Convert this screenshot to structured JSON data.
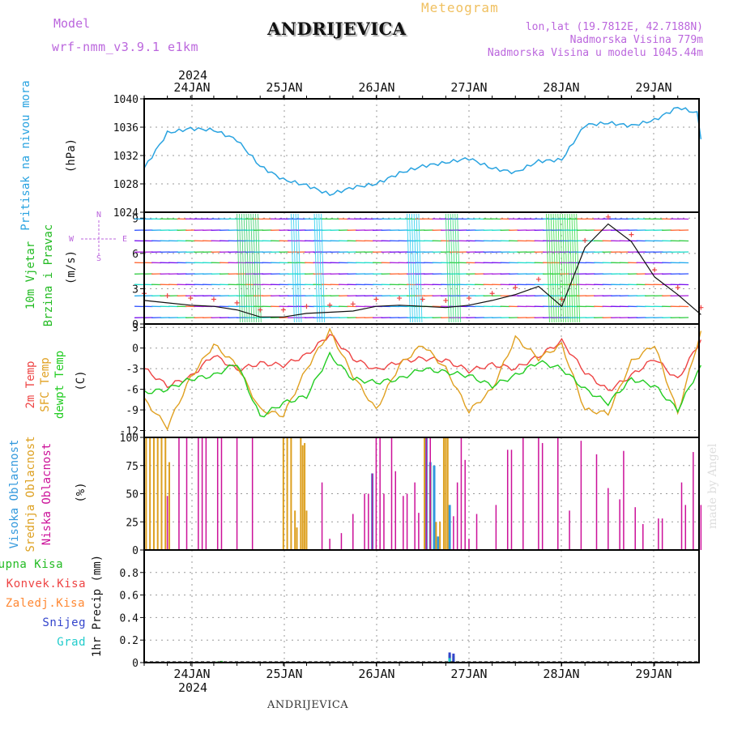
{
  "header": {
    "model_label": "Model",
    "model_name": "wrf-nmm_v3.9.1 e1km",
    "station_title": "ANDRIJEVICA",
    "meteogram_label": "Meteogram",
    "lonlat": "lon,lat (19.7812E, 42.7188N)",
    "altitude": "Nadmorska Visina 779m",
    "model_altitude": "Nadmorska Visina u modelu 1045.44m"
  },
  "footer": {
    "station": "ANDRIJEVICA",
    "credit": "made by Angel"
  },
  "colors": {
    "pressure": "#29a3e0",
    "temp2m": "#ee4444",
    "sfc": "#e0a020",
    "dewpt": "#22cc22",
    "high_cloud": "#3399dd",
    "mid_cloud": "#dda020",
    "low_cloud": "#cc1199",
    "precip_total": "#22bb22",
    "precip_conv": "#ee4444",
    "precip_frozen": "#ff8833",
    "snow": "#3344cc",
    "hail": "#22cccc",
    "header_purple": "#bb66dd",
    "meteogram_orange": "#f0c060"
  },
  "chart_data": [
    {
      "type": "line",
      "panel": "pressure",
      "ylabel_main": "Pritisak na nivou mora",
      "ylabel_unit": "(hPa)",
      "ylim": [
        1024,
        1040
      ],
      "yticks": [
        "1040",
        "1036",
        "1032",
        "1028",
        "1024"
      ],
      "x_top_year": "2024",
      "x_top_labels": [
        "24JAN",
        "25JAN",
        "26JAN",
        "27JAN",
        "28JAN",
        "29JAN"
      ],
      "x_hours": [
        0,
        6,
        12,
        18,
        24,
        30,
        36,
        42,
        48,
        54,
        60,
        66,
        72,
        78,
        84,
        90,
        96,
        102,
        108,
        114,
        120,
        126,
        132,
        138,
        144
      ],
      "series": [
        {
          "values": [
            1030.2,
            1035.2,
            1035.8,
            1035.6,
            1034.2,
            1030.5,
            1028.6,
            1027.8,
            1026.5,
            1027.5,
            1028.0,
            1029.5,
            1030.5,
            1031.0,
            1031.6,
            1030.2,
            1029.6,
            1031.2,
            1031.4,
            1036.3,
            1036.6,
            1036.2,
            1037.0,
            1038.8,
            1037.8
          ]
        }
      ]
    },
    {
      "type": "scatter",
      "panel": "wind",
      "ylabel_main": "10m Vjetar",
      "ylabel_sub": "Brzina i Pravac",
      "ylabel_unit": "(m/s)",
      "compass": [
        "N",
        "S",
        "W",
        "E"
      ],
      "ylim": [
        0,
        9.5
      ],
      "yticks": [
        "9",
        "6",
        "3",
        "0"
      ],
      "x_hours": [
        0,
        6,
        12,
        18,
        24,
        30,
        36,
        42,
        48,
        54,
        60,
        66,
        72,
        78,
        84,
        90,
        96,
        102,
        108,
        114,
        120,
        126,
        132,
        138,
        144
      ],
      "series": [
        {
          "values": [
            2.0,
            1.8,
            1.6,
            1.5,
            1.2,
            0.6,
            0.6,
            0.9,
            1.0,
            1.1,
            1.5,
            1.6,
            1.5,
            1.4,
            1.6,
            2.0,
            2.5,
            3.2,
            1.5,
            6.5,
            8.5,
            7.0,
            4.0,
            2.5,
            0.8
          ]
        }
      ]
    },
    {
      "type": "line",
      "panel": "temperature",
      "ylabel_lines": [
        "2m Temp",
        "SFC Temp",
        "dewpt Temp"
      ],
      "ylabel_unit": "(C)",
      "ylim": [
        -13,
        3.5
      ],
      "yticks": [
        "3",
        "0",
        "-3",
        "-6",
        "-9",
        "-12"
      ],
      "x_hours": [
        0,
        6,
        12,
        18,
        24,
        30,
        36,
        42,
        48,
        54,
        60,
        66,
        72,
        78,
        84,
        90,
        96,
        102,
        108,
        114,
        120,
        126,
        132,
        138,
        144
      ],
      "series": [
        {
          "name": "2m Temp",
          "values": [
            -3.0,
            -5.5,
            -4.2,
            -1.0,
            -3.2,
            -2.2,
            -2.5,
            -1.0,
            2.0,
            -1.5,
            -3.2,
            -2.0,
            -1.5,
            -1.8,
            -3.3,
            -2.4,
            -3.0,
            -1.2,
            1.0,
            -3.5,
            -6.2,
            -4.0,
            -1.5,
            -4.6,
            1.2
          ]
        },
        {
          "name": "SFC Temp",
          "values": [
            -7.5,
            -11.5,
            -4.3,
            0.5,
            -2.5,
            -9.0,
            -9.8,
            -3.0,
            2.5,
            -4.0,
            -9.0,
            -2.5,
            0.5,
            -3.0,
            -9.2,
            -6.0,
            1.5,
            -1.5,
            0.5,
            -9.0,
            -9.5,
            -2.0,
            0.5,
            -9.5,
            2.5
          ]
        },
        {
          "name": "dewpt Temp",
          "values": [
            -6.5,
            -6.0,
            -4.5,
            -4.0,
            -2.2,
            -10.0,
            -8.0,
            -7.0,
            -1.0,
            -4.5,
            -5.0,
            -4.5,
            -3.0,
            -3.5,
            -4.0,
            -5.5,
            -4.0,
            -2.0,
            -3.0,
            -6.0,
            -8.0,
            -4.5,
            -5.5,
            -9.0,
            -2.5
          ]
        }
      ]
    },
    {
      "type": "bar",
      "panel": "cloud",
      "ylabel_lines": [
        "Visoka Oblacnost",
        "Srednja Oblacnost",
        "Niska Oblacnost"
      ],
      "ylabel_unit": "(%)",
      "ylim": [
        0,
        100
      ],
      "yticks": [
        "100",
        "75",
        "50",
        "25",
        "0"
      ],
      "series": [
        {
          "name": "Visoka Oblacnost",
          "bars": [
            [
              59,
              68
            ],
            [
              73,
              100
            ],
            [
              74,
              78
            ],
            [
              75,
              75
            ],
            [
              76,
              12
            ],
            [
              79,
              40
            ]
          ]
        },
        {
          "name": "Srednja Oblacnost",
          "bars": [
            [
              0.5,
              100
            ],
            [
              1.5,
              100
            ],
            [
              2.5,
              100
            ],
            [
              3.5,
              100
            ],
            [
              4.5,
              100
            ],
            [
              5.5,
              100
            ],
            [
              6.5,
              78
            ],
            [
              36,
              100
            ],
            [
              37,
              100
            ],
            [
              38,
              100
            ],
            [
              39,
              35
            ],
            [
              39.5,
              20
            ],
            [
              40.5,
              100
            ],
            [
              41,
              93
            ],
            [
              41.5,
              95
            ],
            [
              42,
              35
            ],
            [
              72.5,
              100
            ],
            [
              74,
              75
            ],
            [
              75.5,
              25
            ],
            [
              76.5,
              25
            ],
            [
              77.5,
              100
            ],
            [
              78,
              100
            ],
            [
              78.5,
              100
            ]
          ]
        },
        {
          "name": "Niska Oblacnost",
          "bars": [
            [
              6,
              48
            ],
            [
              9,
              100
            ],
            [
              11,
              100
            ],
            [
              14,
              100
            ],
            [
              15,
              100
            ],
            [
              16,
              100
            ],
            [
              19,
              100
            ],
            [
              20,
              100
            ],
            [
              24,
              100
            ],
            [
              28,
              100
            ],
            [
              46,
              60
            ],
            [
              48,
              10
            ],
            [
              51,
              15
            ],
            [
              54,
              32
            ],
            [
              57,
              50
            ],
            [
              58,
              50
            ],
            [
              59,
              68
            ],
            [
              60,
              100
            ],
            [
              61,
              100
            ],
            [
              62,
              50
            ],
            [
              64,
              100
            ],
            [
              65,
              70
            ],
            [
              67,
              48
            ],
            [
              68,
              50
            ],
            [
              70,
              60
            ],
            [
              71,
              33
            ],
            [
              73,
              100
            ],
            [
              74,
              100
            ],
            [
              80,
              30
            ],
            [
              81,
              60
            ],
            [
              82,
              100
            ],
            [
              83,
              80
            ],
            [
              84,
              10
            ],
            [
              86,
              32
            ],
            [
              91,
              40
            ],
            [
              94,
              89
            ],
            [
              95,
              89
            ],
            [
              98,
              100
            ],
            [
              102,
              100
            ],
            [
              103,
              95
            ],
            [
              107,
              100
            ],
            [
              110,
              35
            ],
            [
              113,
              97
            ],
            [
              117,
              85
            ],
            [
              120,
              55
            ],
            [
              123,
              45
            ],
            [
              124,
              88
            ],
            [
              127,
              38
            ],
            [
              129,
              23
            ],
            [
              133,
              28
            ],
            [
              134,
              28
            ],
            [
              139,
              60
            ],
            [
              140,
              40
            ],
            [
              142,
              87
            ],
            [
              144,
              40
            ]
          ]
        }
      ]
    },
    {
      "type": "bar",
      "panel": "precip",
      "ylabel_main": "1hr Precip (mm)",
      "legend": [
        "Ukupna Kisa",
        "Konvek.Kisa",
        "Zaledj.Kisa",
        "Snijeg",
        "Grad"
      ],
      "ylim": [
        0,
        1.0
      ],
      "yticks": [
        "0.8",
        "0.6",
        "0.4",
        "0.2",
        "0"
      ],
      "x_bottom_labels": [
        "24JAN",
        "25JAN",
        "26JAN",
        "27JAN",
        "28JAN",
        "29JAN"
      ],
      "x_bottom_year": "2024",
      "series": [
        {
          "name": "Ukupna Kisa",
          "bars": [
            [
              19,
              0.01
            ],
            [
              20,
              0.015
            ],
            [
              59,
              0.01
            ],
            [
              68,
              0.005
            ],
            [
              79,
              0.07
            ],
            [
              80,
              0.06
            ],
            [
              117,
              0.005
            ]
          ]
        },
        {
          "name": "Snijeg",
          "bars": [
            [
              79,
              0.09
            ],
            [
              80,
              0.08
            ]
          ]
        },
        {
          "name": "Grad",
          "bars": [
            [
              79,
              0.04
            ]
          ]
        }
      ]
    }
  ]
}
